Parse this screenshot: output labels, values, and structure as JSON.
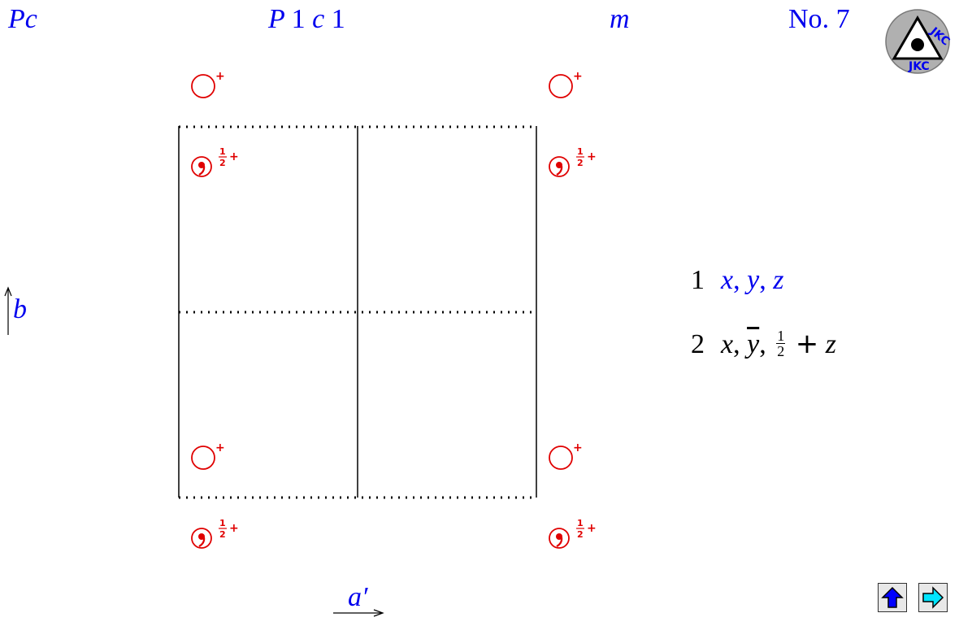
{
  "header": {
    "short_symbol_main": "P",
    "short_symbol_sub": "c",
    "full_symbol_P": "P",
    "full_symbol_1a": "1",
    "full_symbol_c": "c",
    "full_symbol_1b": "1",
    "point_group": "m",
    "number_prefix": "No",
    "number_rest": ". 7"
  },
  "logo": {
    "text_top": "JKC",
    "text_bottom": "JKC"
  },
  "axes": {
    "b_label": "b",
    "a_label": "a′"
  },
  "diagram": {
    "position_plus": "+",
    "position_half": "1",
    "position_half_den": "2",
    "position_half_plus": "+"
  },
  "coordinates": [
    {
      "number": "1",
      "x": "x",
      "y": "y",
      "z": "z"
    },
    {
      "number": "2",
      "x": "x",
      "y": "y",
      "frac_num": "1",
      "frac_den": "2",
      "plus": "+",
      "z": "z"
    }
  ],
  "nav": {
    "up_icon": "up-arrow-icon",
    "next_icon": "right-arrow-icon"
  },
  "colors": {
    "blue_text": "#0000ee",
    "red_symbols": "#e00000",
    "nav_up": "#0000ff",
    "nav_next": "#00e5ff"
  }
}
